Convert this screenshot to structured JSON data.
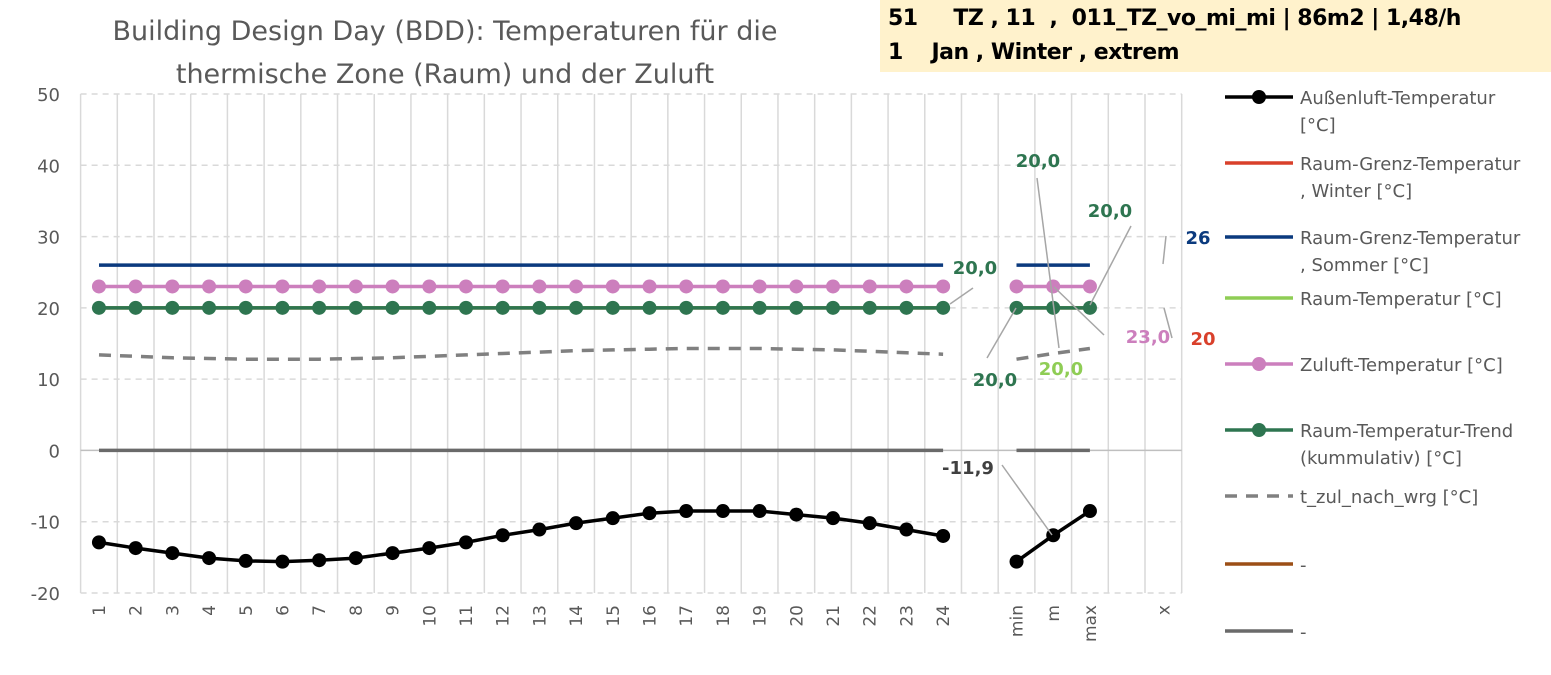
{
  "header": {
    "line1": "51     TZ , 11  ,  011_TZ_vo_mi_mi | 86m2 | 1,48/h",
    "line2": "1    Jan , Winter , extrem"
  },
  "chart_data": {
    "type": "line",
    "title": [
      "Building Design Day (BDD): Temperaturen für die",
      "thermische Zone (Raum) und der Zuluft"
    ],
    "xlabel": "",
    "ylabel": "",
    "ylim": [
      -20,
      50
    ],
    "yticks": [
      "50",
      "40",
      "30",
      "20",
      "10",
      "0",
      "-10",
      "-20"
    ],
    "ytick_values": [
      50,
      40,
      30,
      20,
      10,
      0,
      -10,
      -20
    ],
    "categories": [
      "1",
      "2",
      "3",
      "4",
      "5",
      "6",
      "7",
      "8",
      "9",
      "10",
      "11",
      "12",
      "13",
      "14",
      "15",
      "16",
      "17",
      "18",
      "19",
      "20",
      "21",
      "22",
      "23",
      "24",
      "",
      "min",
      "m",
      "max",
      "",
      "x"
    ],
    "grid": true,
    "legend_position": "right",
    "series": [
      {
        "name": "Raum-Grenz-Temperatur , Winter [°C]",
        "color": "#d9402b",
        "marker": false,
        "dash": false,
        "values": [
          20,
          20,
          20,
          20,
          20,
          20,
          20,
          20,
          20,
          20,
          20,
          20,
          20,
          20,
          20,
          20,
          20,
          20,
          20,
          20,
          20,
          20,
          20,
          20,
          null,
          20,
          20,
          20,
          null,
          null
        ]
      },
      {
        "name": "Raum-Grenz-Temperatur , Sommer [°C]",
        "color": "#0b3a7e",
        "marker": false,
        "dash": false,
        "values": [
          26,
          26,
          26,
          26,
          26,
          26,
          26,
          26,
          26,
          26,
          26,
          26,
          26,
          26,
          26,
          26,
          26,
          26,
          26,
          26,
          26,
          26,
          26,
          26,
          null,
          26,
          26,
          26,
          null,
          null
        ]
      },
      {
        "name": "Raum-Temperatur [°C]",
        "color": "#8fcd55",
        "marker": false,
        "dash": false,
        "values": [
          20,
          20,
          20,
          20,
          20,
          20,
          20,
          20,
          20,
          20,
          20,
          20,
          20,
          20,
          20,
          20,
          20,
          20,
          20,
          20,
          20,
          20,
          20,
          20,
          null,
          20,
          20,
          20,
          null,
          null
        ]
      },
      {
        "name": "Zuluft-Temperatur [°C]",
        "color": "#cc7fbd",
        "marker": true,
        "dash": false,
        "values": [
          23,
          23,
          23,
          23,
          23,
          23,
          23,
          23,
          23,
          23,
          23,
          23,
          23,
          23,
          23,
          23,
          23,
          23,
          23,
          23,
          23,
          23,
          23,
          23,
          null,
          23,
          23,
          23,
          null,
          null
        ]
      },
      {
        "name": "Raum-Temperatur-Trend (kummulativ) [°C]",
        "color": "#2e7550",
        "marker": true,
        "dash": false,
        "values": [
          20,
          20,
          20,
          20,
          20,
          20,
          20,
          20,
          20,
          20,
          20,
          20,
          20,
          20,
          20,
          20,
          20,
          20,
          20,
          20,
          20,
          20,
          20,
          20,
          null,
          20,
          20,
          20,
          null,
          null
        ]
      },
      {
        "name": "t_zul_nach_wrg [°C]",
        "color": "#808080",
        "marker": false,
        "dash": true,
        "values": [
          13.4,
          13.2,
          13.0,
          12.9,
          12.8,
          12.8,
          12.8,
          12.9,
          13.0,
          13.2,
          13.4,
          13.6,
          13.8,
          14.0,
          14.1,
          14.2,
          14.3,
          14.3,
          14.3,
          14.2,
          14.1,
          13.9,
          13.7,
          13.5,
          null,
          12.8,
          13.6,
          14.3,
          null,
          null
        ]
      },
      {
        "name": "-",
        "color": "#9c4f16",
        "marker": false,
        "dash": false,
        "values": [
          null,
          null,
          null,
          null,
          null,
          null,
          null,
          null,
          null,
          null,
          null,
          null,
          null,
          null,
          null,
          null,
          null,
          null,
          null,
          null,
          null,
          null,
          null,
          null,
          null,
          null,
          null,
          null,
          null,
          null
        ]
      },
      {
        "name": "-",
        "color": "#6a6a6a",
        "marker": false,
        "dash": false,
        "values": [
          0,
          0,
          0,
          0,
          0,
          0,
          0,
          0,
          0,
          0,
          0,
          0,
          0,
          0,
          0,
          0,
          0,
          0,
          0,
          0,
          0,
          0,
          0,
          0,
          null,
          0,
          0,
          0,
          null,
          null
        ]
      },
      {
        "name": "Außenluft-Temperatur [°C]",
        "color": "#000000",
        "marker": true,
        "dash": false,
        "values": [
          -12.9,
          -13.7,
          -14.4,
          -15.1,
          -15.5,
          -15.6,
          -15.4,
          -15.1,
          -14.4,
          -13.7,
          -12.9,
          -11.9,
          -11.1,
          -10.2,
          -9.5,
          -8.8,
          -8.5,
          -8.5,
          -8.5,
          -9.0,
          -9.5,
          -10.2,
          -11.1,
          -12.0,
          null,
          -15.6,
          -11.9,
          -8.5,
          null,
          null
        ]
      }
    ],
    "legend": [
      {
        "label": "Außenluft-Temperatur [°C]",
        "lines": [
          "Außenluft-Temperatur",
          "[°C]"
        ],
        "color": "#000000",
        "marker": true,
        "dash": false
      },
      {
        "label": "Raum-Grenz-Temperatur , Winter [°C]",
        "lines": [
          "Raum-Grenz-Temperatur",
          ", Winter [°C]"
        ],
        "color": "#d9402b",
        "marker": false,
        "dash": false
      },
      {
        "label": "Raum-Grenz-Temperatur , Sommer [°C]",
        "lines": [
          "Raum-Grenz-Temperatur",
          ", Sommer [°C]"
        ],
        "color": "#0b3a7e",
        "marker": false,
        "dash": false
      },
      {
        "label": "Raum-Temperatur [°C]",
        "lines": [
          "Raum-Temperatur [°C]"
        ],
        "color": "#8fcd55",
        "marker": false,
        "dash": false
      },
      {
        "label": "Zuluft-Temperatur [°C]",
        "lines": [
          "Zuluft-Temperatur [°C]"
        ],
        "color": "#cc7fbd",
        "marker": true,
        "dash": false
      },
      {
        "label": "Raum-Temperatur-Trend (kummulativ) [°C]",
        "lines": [
          "Raum-Temperatur-Trend",
          "(kummulativ) [°C]"
        ],
        "color": "#2e7550",
        "marker": true,
        "dash": false
      },
      {
        "label": "t_zul_nach_wrg [°C]",
        "lines": [
          "t_zul_nach_wrg [°C]"
        ],
        "color": "#808080",
        "marker": false,
        "dash": true
      },
      {
        "label": "-",
        "lines": [
          "-"
        ],
        "color": "#9c4f16",
        "marker": false,
        "dash": false
      },
      {
        "label": "-",
        "lines": [
          "-"
        ],
        "color": "#6a6a6a",
        "marker": false,
        "dash": false
      }
    ],
    "annotations": [
      {
        "text": "20,0",
        "color": "#2e7550",
        "target": "trend @ 24"
      },
      {
        "text": "20,0",
        "color": "#2e7550",
        "target": "trend @ m"
      },
      {
        "text": "20,0",
        "color": "#2e7550",
        "target": "trend @ max"
      },
      {
        "text": "20,0",
        "color": "#2e7550",
        "target": "trend @ min"
      },
      {
        "text": "20,0",
        "color": "#8fcd55",
        "target": "raum @ m"
      },
      {
        "text": "23,0",
        "color": "#cc7fbd",
        "target": "zuluft @ m"
      },
      {
        "text": "26",
        "color": "#0b3a7e",
        "target": "sommer @ x"
      },
      {
        "text": "20",
        "color": "#d9402b",
        "target": "winter @ x"
      },
      {
        "text": "-11,9",
        "color": "#404040",
        "target": "aussen @ m"
      }
    ]
  }
}
